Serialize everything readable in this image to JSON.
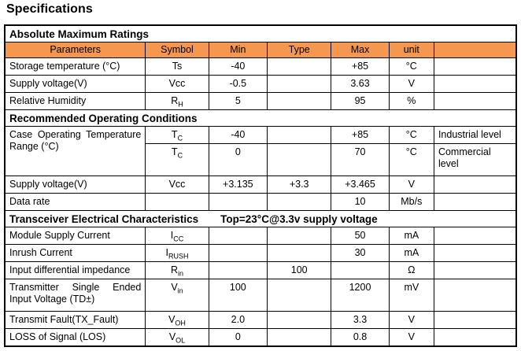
{
  "page_title": "Specifications",
  "colors": {
    "header_bg": "#F5974E",
    "border": "#000000",
    "text": "#000000"
  },
  "table": {
    "columns": [
      "Parameters",
      "Symbol",
      "Min",
      "Type",
      "Max",
      "unit",
      ""
    ],
    "sections": [
      {
        "title": "Absolute Maximum Ratings",
        "extra": "",
        "show_column_header": true,
        "rows": [
          {
            "param": "Storage temperature (°C)",
            "symbol": "Ts",
            "min": "-40",
            "type": "",
            "max": "+85",
            "unit": "°C",
            "note": ""
          },
          {
            "param": "Supply voltage(V)",
            "symbol": "Vcc",
            "min": "-0.5",
            "type": "",
            "max": "3.63",
            "unit": "V",
            "note": ""
          },
          {
            "param": "Relative Humidity",
            "symbol": "R~H~",
            "min": "5",
            "type": "",
            "max": "95",
            "unit": "%",
            "note": ""
          }
        ]
      },
      {
        "title": "Recommended Operating Conditions",
        "extra": "",
        "show_column_header": false,
        "rows": [
          {
            "param": "Case Operating Temperature Range (°C)",
            "param_rowspan": 2,
            "param_wrap": true,
            "symbol": "T~C~",
            "min": "-40",
            "type": "",
            "max": "+85",
            "unit": "°C",
            "note": "Industrial level"
          },
          {
            "param_omit": true,
            "tall": true,
            "symbol": "T~C~",
            "min": "0",
            "type": "",
            "max": "70",
            "unit": "°C",
            "note": "Commercial level"
          },
          {
            "param": "Supply voltage(V)",
            "symbol": "Vcc",
            "min": "+3.135",
            "type": "+3.3",
            "max": "+3.465",
            "unit": "V",
            "note": ""
          },
          {
            "param": "Data rate",
            "symbol": "",
            "min": "",
            "type": "",
            "max": "10",
            "unit": "Mb/s",
            "note": ""
          }
        ]
      },
      {
        "title": "Transceiver Electrical Characteristics",
        "extra": "Top=23°C@3.3v supply voltage",
        "show_column_header": false,
        "rows": [
          {
            "param": "Module Supply Current",
            "symbol": "I~CC~",
            "min": "",
            "type": "",
            "max": "50",
            "unit": "mA",
            "note": ""
          },
          {
            "param": "Inrush Current",
            "symbol": "I~RUSH~",
            "min": "",
            "type": "",
            "max": "30",
            "unit": "mA",
            "note": ""
          },
          {
            "param": "Input differential impedance",
            "symbol": "R~in~",
            "min": "",
            "type": "100",
            "max": "",
            "unit": "Ω",
            "note": ""
          },
          {
            "param": "Transmitter Single Ended Input Voltage (TD±)",
            "param_wrap": true,
            "tall": true,
            "symbol": "V~in~",
            "min": "100",
            "type": "",
            "max": "1200",
            "unit": "mV",
            "note": ""
          },
          {
            "param": "Transmit Fault(TX_Fault)",
            "symbol": "V~OH~",
            "min": "2.0",
            "type": "",
            "max": "3.3",
            "unit": "V",
            "note": ""
          },
          {
            "param": "LOSS of Signal (LOS)",
            "symbol": "V~OL~",
            "min": "0",
            "type": "",
            "max": "0.8",
            "unit": "V",
            "note": ""
          }
        ]
      }
    ]
  }
}
